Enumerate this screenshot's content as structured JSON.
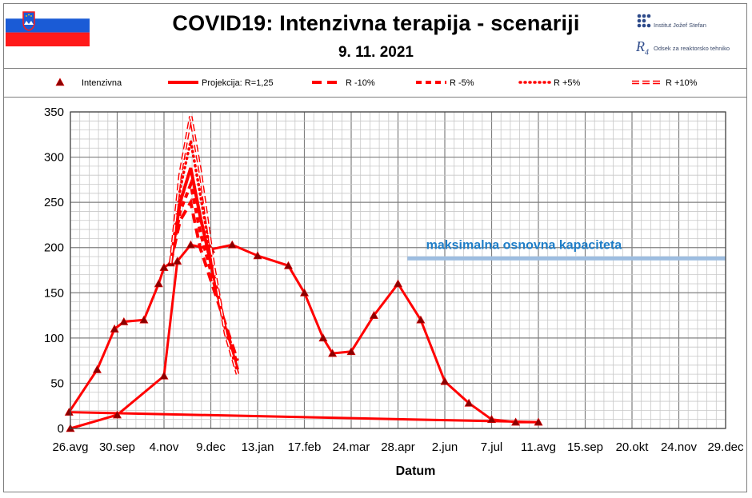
{
  "header": {
    "title": "COVID19: Intenzivna terapija - scenariji",
    "date": "9. 11. 2021",
    "logo_ijs": "Institut Jožef Stefan",
    "logo_r4": "Odsek za reaktorsko tehniko",
    "flag_colors": [
      "#ffffff",
      "#1a5bd6",
      "#ff1a1a"
    ]
  },
  "colors": {
    "series": "#ff0000",
    "capacity": "#9dbde0",
    "capacity_text": "#1f7ec8",
    "grid": "#c8c8c8",
    "grid_major": "#7f7f7f"
  },
  "chart_data": {
    "type": "line",
    "xlabel": "Datum",
    "ylabel": "",
    "ylim": [
      0,
      350
    ],
    "yticks": [
      0,
      50,
      100,
      150,
      200,
      250,
      300,
      350
    ],
    "xticks": [
      "26.avg",
      "30.sep",
      "4.nov",
      "9.dec",
      "13.jan",
      "17.feb",
      "24.mar",
      "28.apr",
      "2.jun",
      "7.jul",
      "11.avg",
      "15.sep",
      "20.okt",
      "24.nov",
      "29.dec"
    ],
    "grid": true,
    "legend_position": "top",
    "annotation": {
      "text": "maksimalna  osnovna  kapaciteta",
      "value": 188
    },
    "series": [
      {
        "name": "Intenzivna",
        "style": "triangle-marker",
        "x": [
          "26.avg",
          "30.sep",
          "4.nov",
          "14.nov",
          "24.nov",
          "9.dec",
          "25.dec",
          "13.jan",
          "5.feb",
          "17.feb",
          "3.mar",
          "10.mar",
          "24.mar",
          "10.apr",
          "28.apr",
          "15.may",
          "2.jun",
          "20.jun",
          "7.jul",
          "25.jul",
          "11.avg",
          "25.avg",
          "15.sep",
          "28.sep",
          "5.okt",
          "20.okt",
          "31.okt",
          "4.nov",
          "9.nov"
        ],
        "values": [
          0,
          15,
          58,
          185,
          203,
          198,
          203,
          191,
          180,
          150,
          100,
          83,
          85,
          125,
          160,
          120,
          52,
          28,
          10,
          7,
          7,
          18,
          65,
          110,
          118,
          120,
          160,
          178,
          183
        ]
      },
      {
        "name": "Projekcija: R=1,25",
        "style": "solid",
        "x": [
          "9.nov",
          "16.nov",
          "24.nov",
          "1.dec",
          "11.dec",
          "20.dec",
          "29.dec"
        ],
        "values": [
          183,
          250,
          288,
          235,
          170,
          110,
          65
        ]
      },
      {
        "name": "R -10%",
        "style": "long-dash",
        "x": [
          "9.nov",
          "16.nov",
          "24.nov",
          "1.dec",
          "11.dec",
          "20.dec",
          "29.dec"
        ],
        "values": [
          183,
          230,
          250,
          200,
          155,
          115,
          75
        ]
      },
      {
        "name": "R -5%",
        "style": "dash",
        "x": [
          "9.nov",
          "16.nov",
          "24.nov",
          "1.dec",
          "11.dec",
          "20.dec",
          "29.dec"
        ],
        "values": [
          183,
          240,
          270,
          218,
          163,
          112,
          70
        ]
      },
      {
        "name": "R +5%",
        "style": "dotted",
        "x": [
          "9.nov",
          "16.nov",
          "24.nov",
          "1.dec",
          "11.dec",
          "20.dec",
          "29.dec"
        ],
        "values": [
          183,
          265,
          318,
          260,
          175,
          108,
          62
        ]
      },
      {
        "name": "R +10%",
        "style": "hollow",
        "x": [
          "9.nov",
          "16.nov",
          "24.nov",
          "1.dec",
          "11.dec",
          "20.dec",
          "29.dec"
        ],
        "values": [
          183,
          280,
          345,
          285,
          180,
          105,
          60
        ]
      }
    ]
  }
}
